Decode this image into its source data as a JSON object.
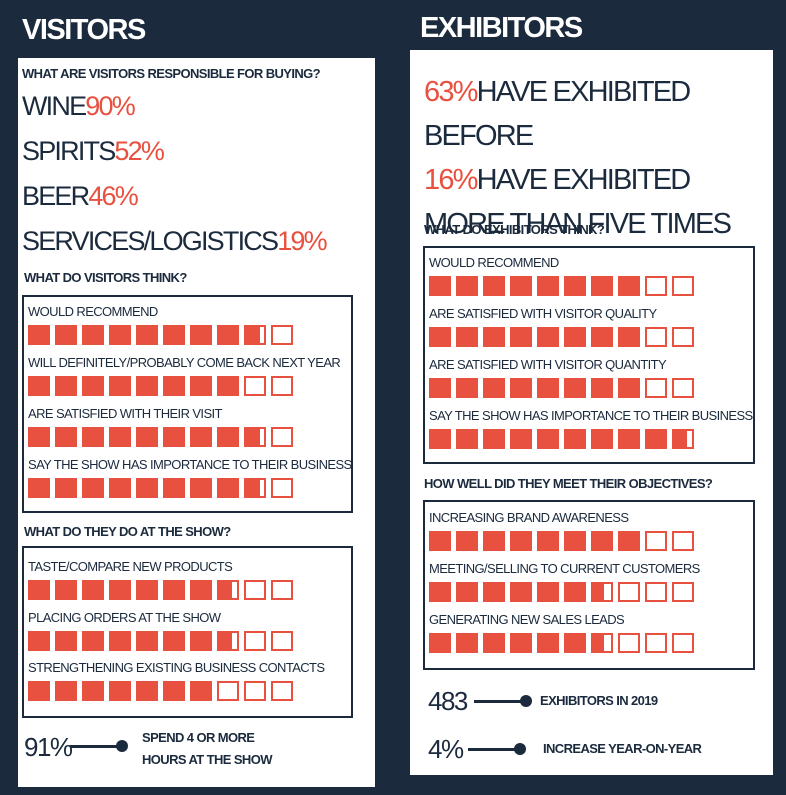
{
  "visitors": {
    "title": "VISITORS",
    "buying": {
      "heading": "WHAT ARE VISITORS RESPONSIBLE FOR BUYING?",
      "items": [
        {
          "label": "WINE",
          "value": "90%"
        },
        {
          "label": "SPIRITS",
          "value": "52%"
        },
        {
          "label": "BEER",
          "value": "46%"
        },
        {
          "label": "SERVICES/LOGISTICS",
          "value": "19%"
        }
      ]
    },
    "think": {
      "heading": "WHAT DO VISITORS THINK?",
      "items": [
        {
          "label": "WOULD RECOMMEND",
          "score": 88
        },
        {
          "label": "WILL DEFINITELY/PROBABLY COME BACK NEXT YEAR",
          "score": 80
        },
        {
          "label": "ARE SATISFIED WITH THEIR VISIT",
          "score": 88
        },
        {
          "label": "SAY THE SHOW HAS IMPORTANCE TO THEIR BUSINESS",
          "score": 88
        }
      ]
    },
    "do": {
      "heading": "WHAT DO THEY DO AT THE SHOW?",
      "items": [
        {
          "label": "TASTE/COMPARE NEW PRODUCTS",
          "score": 77
        },
        {
          "label": "PLACING ORDERS AT THE SHOW",
          "score": 77
        },
        {
          "label": "STRENGTHENING EXISTING BUSINESS CONTACTS",
          "score": 70
        }
      ]
    },
    "stat": {
      "value": "91%",
      "label": "SPEND 4 OR MORE HOURS AT THE SHOW"
    }
  },
  "exhibitors": {
    "title": "EXHIBITORS",
    "facts": [
      {
        "value": "63%",
        "label": "HAVE EXHIBITED BEFORE"
      },
      {
        "value": "16%",
        "label": "HAVE EXHIBITED MORE THAN FIVE TIMES"
      }
    ],
    "think": {
      "heading": "WHAT DO EXHIBITORS THINK?",
      "items": [
        {
          "label": "WOULD RECOMMEND",
          "score": 80
        },
        {
          "label": "ARE SATISFIED WITH VISITOR QUALITY",
          "score": 80
        },
        {
          "label": "ARE SATISFIED WITH VISITOR QUANTITY",
          "score": 80
        },
        {
          "label": "SAY THE SHOW HAS IMPORTANCE TO THEIR BUSINESS",
          "score": 97
        }
      ]
    },
    "objectives": {
      "heading": "HOW WELL DID THEY MEET THEIR OBJECTIVES?",
      "items": [
        {
          "label": "INCREASING BRAND AWARENESS",
          "score": 80
        },
        {
          "label": "MEETING/SELLING TO CURRENT CUSTOMERS",
          "score": 66
        },
        {
          "label": "GENERATING NEW SALES LEADS",
          "score": 66
        }
      ]
    },
    "stats": [
      {
        "value": "483",
        "label": "EXHIBITORS IN 2019"
      },
      {
        "value": "4%",
        "label": "INCREASE YEAR-ON-YEAR"
      }
    ]
  }
}
